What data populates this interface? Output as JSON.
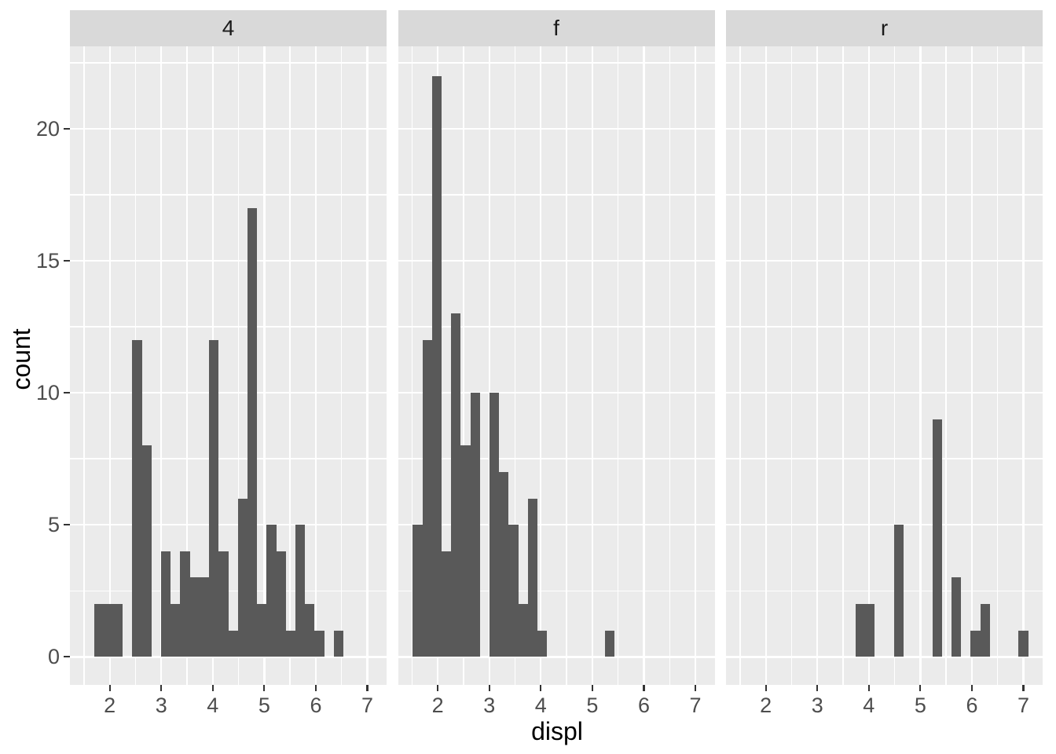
{
  "chart_data": {
    "type": "bar",
    "subtype": "faceted-histogram",
    "title": "",
    "xlabel": "displ",
    "ylabel": "count",
    "legend_position": "none",
    "grid": true,
    "facets": [
      {
        "label": "4",
        "counts": [
          0,
          2,
          2,
          2,
          0,
          12,
          8,
          0,
          4,
          2,
          4,
          3,
          3,
          12,
          4,
          1,
          6,
          17,
          2,
          5,
          4,
          1,
          5,
          2,
          1,
          0,
          1,
          0,
          0,
          0
        ]
      },
      {
        "label": "f",
        "counts": [
          5,
          12,
          22,
          4,
          13,
          8,
          10,
          0,
          10,
          7,
          5,
          2,
          6,
          1,
          0,
          0,
          0,
          0,
          0,
          0,
          1,
          0,
          0,
          0,
          0,
          0,
          0,
          0,
          0,
          0
        ]
      },
      {
        "label": "r",
        "counts": [
          0,
          0,
          0,
          0,
          0,
          0,
          0,
          0,
          0,
          0,
          0,
          0,
          2,
          2,
          0,
          0,
          5,
          0,
          0,
          0,
          9,
          0,
          3,
          0,
          1,
          2,
          0,
          0,
          0,
          1
        ]
      }
    ],
    "bin_origin": 1.5069,
    "bin_width": 0.18621,
    "x_ticks": [
      2,
      3,
      4,
      5,
      6,
      7
    ],
    "y_ticks": [
      0,
      5,
      10,
      15,
      20
    ],
    "x_minor": [
      1.5,
      2.5,
      3.5,
      4.5,
      5.5,
      6.5
    ],
    "y_minor": [
      2.5,
      7.5,
      12.5,
      17.5,
      22.5
    ],
    "x_range": [
      1.2276,
      7.3725
    ],
    "y_range": [
      -1.06,
      23.12
    ],
    "colors": {
      "bar": "#595959",
      "panel_bg": "#EBEBEB",
      "strip_bg": "#D9D9D9",
      "grid": "#FFFFFF",
      "tick": "#333333",
      "tick_label": "#4D4D4D",
      "strip_label": "#1A1A1A",
      "axis_title": "#000000",
      "figure_bg": "#FFFFFF"
    }
  }
}
